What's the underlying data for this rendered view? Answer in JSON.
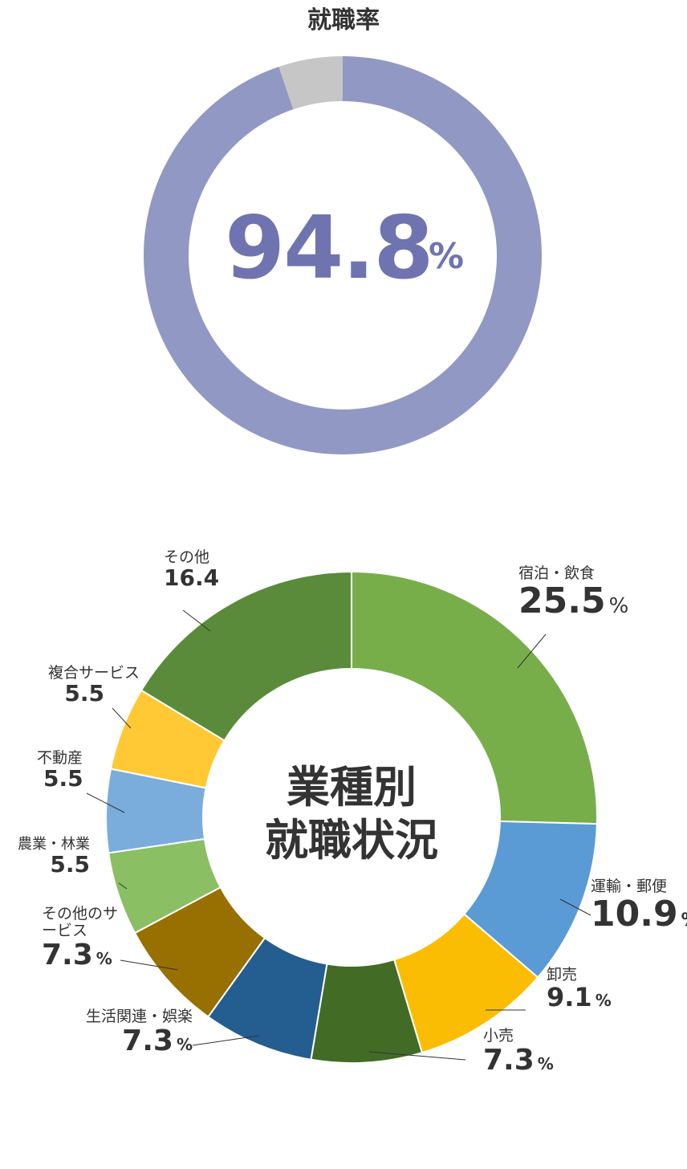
{
  "employment_title": "就職率",
  "employment_rate": {
    "value": "94.8",
    "unit": "%"
  },
  "industry_center_line1": "業種別",
  "industry_center_line2": "就職状況",
  "colors": {
    "rate_ring": "#9198c4",
    "rate_rest": "#c6c6c6",
    "rate_text": "#6f74b1"
  },
  "chart_data": [
    {
      "type": "pie",
      "donut": true,
      "title": "就職率",
      "slices": [
        {
          "label": "就職",
          "value": 94.8,
          "color": "#9198c4"
        },
        {
          "label": "",
          "value": 5.2,
          "color": "#c6c6c6"
        }
      ]
    },
    {
      "type": "pie",
      "donut": true,
      "title": "業種別就職状況",
      "slices": [
        {
          "label": "宿泊・飲食",
          "value": 25.5,
          "display": "25.5",
          "unit": "%",
          "color": "#78ae4a"
        },
        {
          "label": "運輸・郵便",
          "value": 10.9,
          "display": "10.9",
          "unit": "%",
          "color": "#5b9bd5"
        },
        {
          "label": "卸売",
          "value": 9.1,
          "display": "9.1",
          "unit": "%",
          "color": "#fbbd03"
        },
        {
          "label": "小売",
          "value": 7.3,
          "display": "7.3",
          "unit": "%",
          "color": "#426b26"
        },
        {
          "label": "生活関連・娯楽",
          "value": 7.3,
          "display": "7.3",
          "unit": "%",
          "color": "#245d8f"
        },
        {
          "label": "その他のサービス",
          "value": 7.3,
          "display": "7.3",
          "unit": "%",
          "color": "#987002"
        },
        {
          "label": "農業・林業",
          "value": 5.5,
          "display": "5.5",
          "unit": "",
          "color": "#8abf63"
        },
        {
          "label": "不動産",
          "value": 5.5,
          "display": "5.5",
          "unit": "",
          "color": "#7aaddc"
        },
        {
          "label": "複合サービス",
          "value": 5.5,
          "display": "5.5",
          "unit": "",
          "color": "#ffc935"
        },
        {
          "label": "その他",
          "value": 16.4,
          "display": "16.4",
          "unit": "",
          "color": "#5a8b3a"
        }
      ]
    }
  ]
}
